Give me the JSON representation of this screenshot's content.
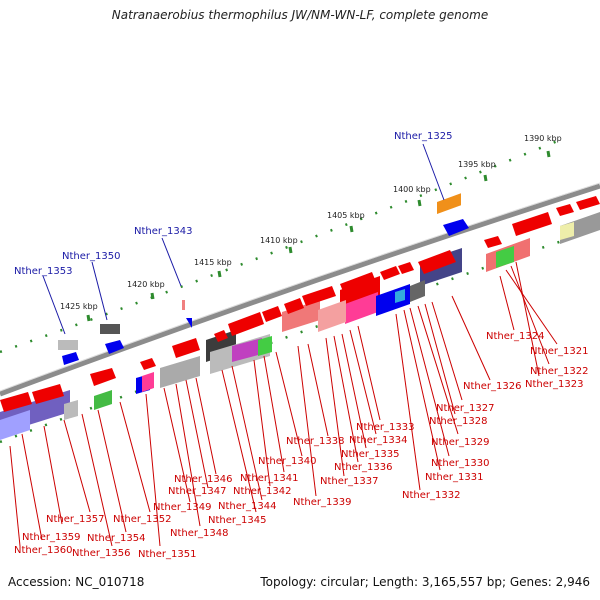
{
  "title": "Natranaerobius thermophilus JW/NM-WN-LF, complete genome",
  "footer": {
    "accession": "Accession: NC_010718",
    "topology": "Topology: circular; Length: 3,165,557 bp; Genes: 2,946"
  },
  "scale_labels": [
    "1390 kbp",
    "1395 kbp",
    "1400 kbp",
    "1405 kbp",
    "1410 kbp",
    "1415 kbp",
    "1420 kbp",
    "1425 kbp"
  ],
  "labels_top": [
    "Nther_1325",
    "Nther_1343",
    "Nther_1350",
    "Nther_1353"
  ],
  "labels_right": [
    "Nther_1324",
    "Nther_1321",
    "Nther_1322",
    "Nther_1323",
    "Nther_1326",
    "Nther_1327",
    "Nther_1328",
    "Nther_1329",
    "Nther_1330",
    "Nther_1331",
    "Nther_1332"
  ],
  "labels_bottom": [
    "Nther_1333",
    "Nther_1334",
    "Nther_1335",
    "Nther_1336",
    "Nther_1337",
    "Nther_1338",
    "Nther_1339",
    "Nther_1340",
    "Nther_1341",
    "Nther_1342",
    "Nther_1344",
    "Nther_1345",
    "Nther_1346",
    "Nther_1347",
    "Nther_1348",
    "Nther_1349",
    "Nther_1351",
    "Nther_1352",
    "Nther_1354",
    "Nther_1356",
    "Nther_1357",
    "Nther_1359",
    "Nther_1360"
  ],
  "colors": {
    "backbone": "#8c8c8c",
    "forward_gene": "#ee0000",
    "reverse_gene": "#0000ee",
    "label_top": "#1a1aa6",
    "label_gene": "#cc0000",
    "tick_green": "#2e8b2e"
  }
}
